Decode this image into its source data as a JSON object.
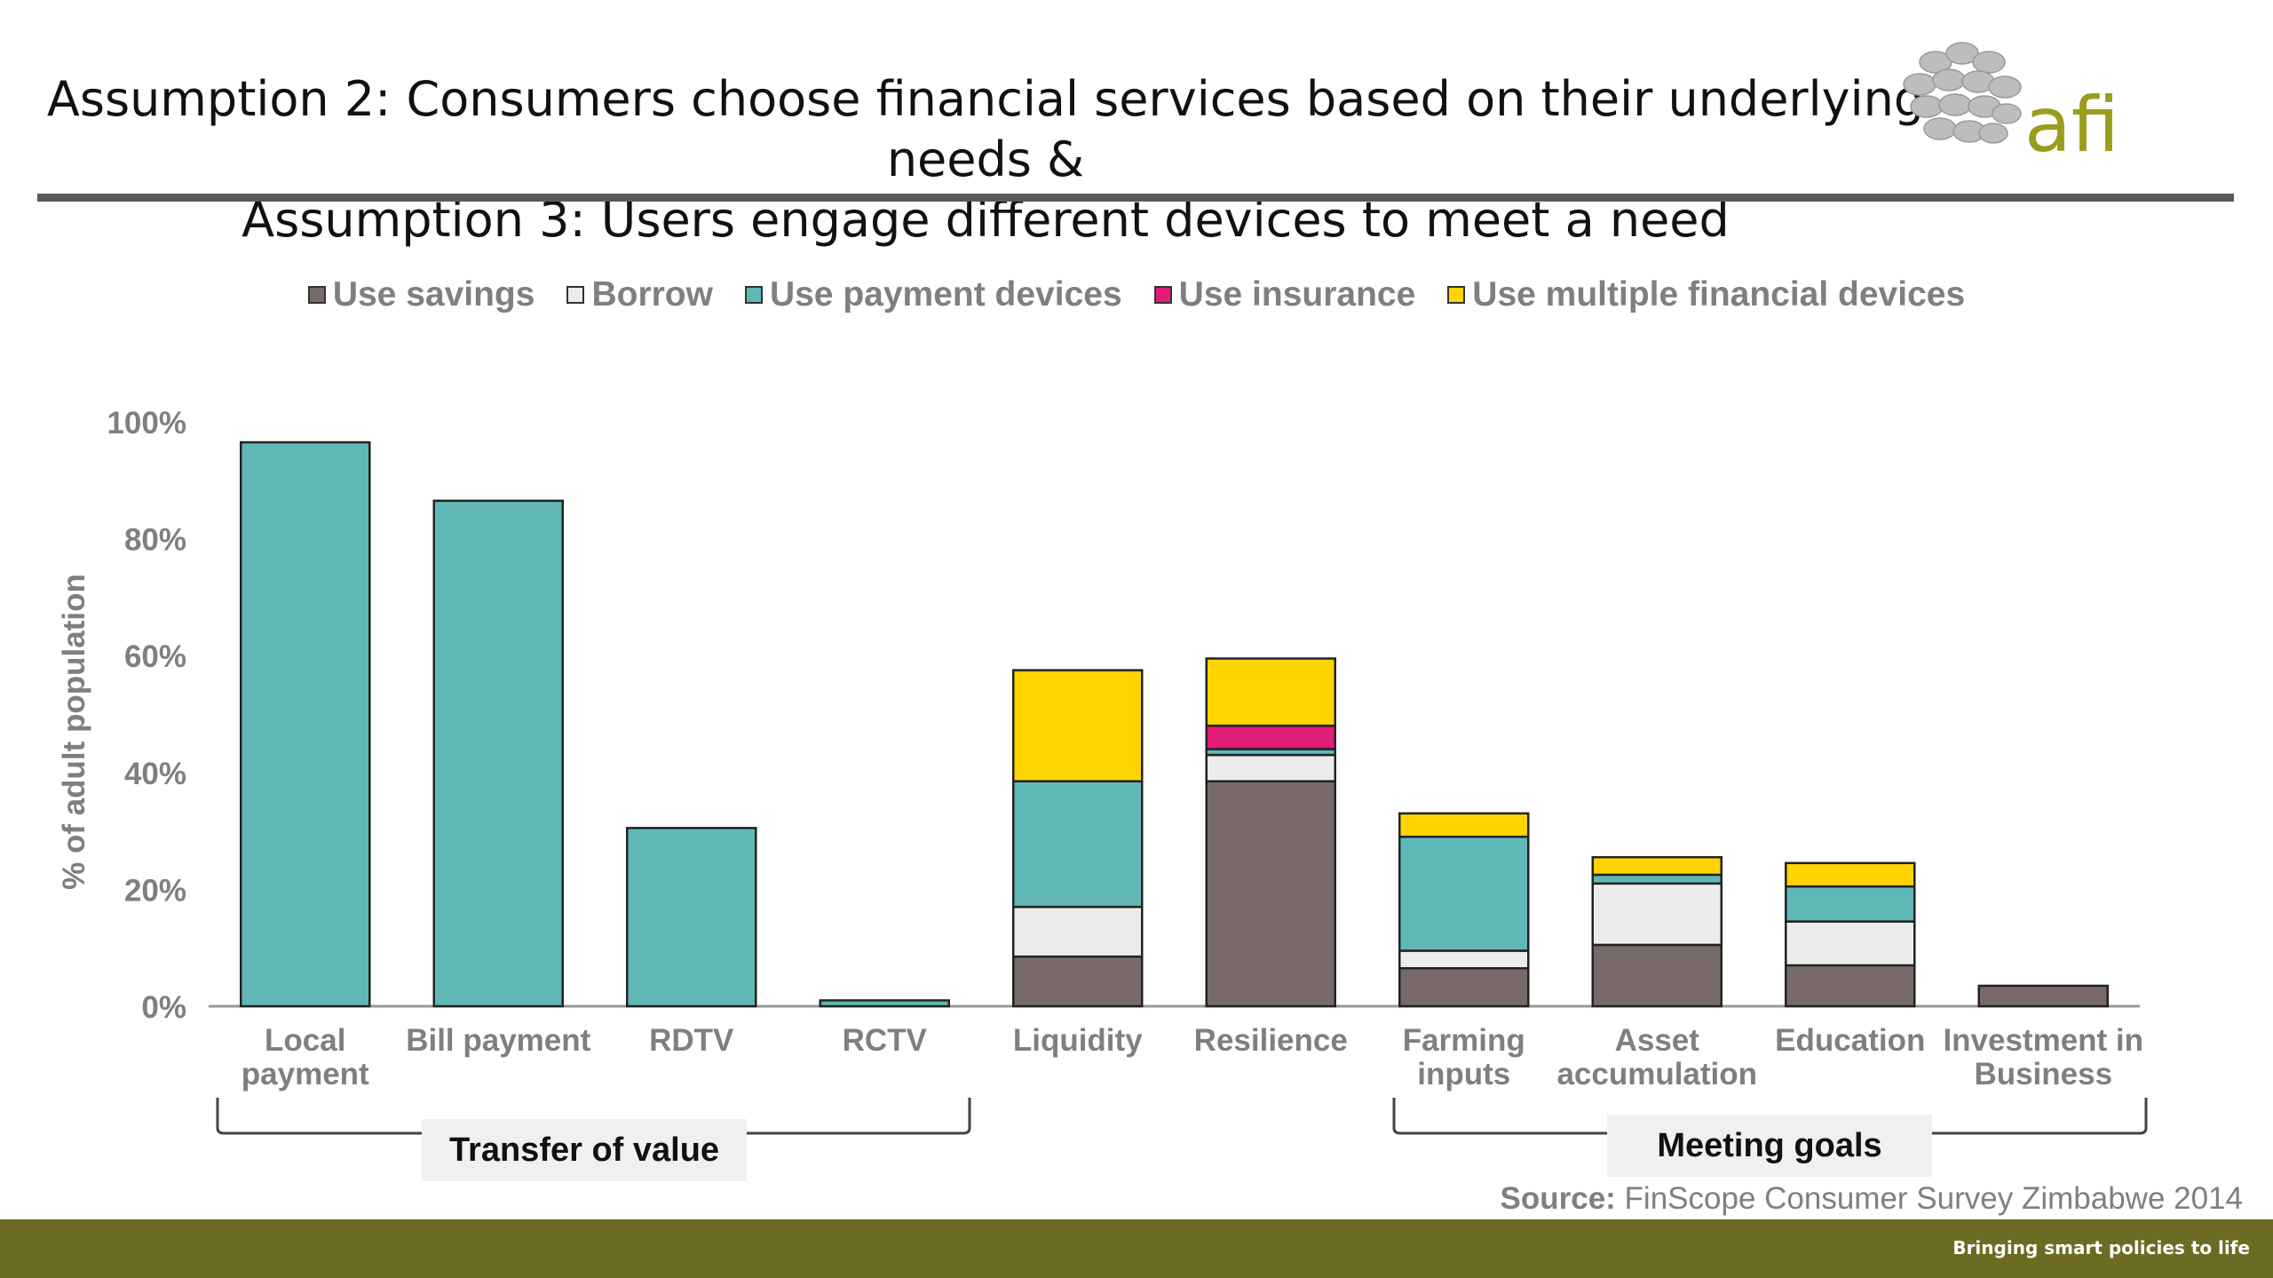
{
  "title_line1": "Assumption 2: Consumers choose financial services based on their underlying needs &",
  "title_line2": "Assumption 3: Users engage different devices to meet a need",
  "logo_text": "afi",
  "source_label": "Source:",
  "source_text": "FinScope Consumer Survey Zimbabwe 2014",
  "footer_text": "Bringing smart policies to life",
  "groups": {
    "transfer": "Transfer of value",
    "meeting": "Meeting goals"
  },
  "colors": {
    "savings": "#776a69",
    "borrow": "#ececec",
    "payment": "#5fb8b6",
    "insurance": "#e21d77",
    "multiple": "#ffd400",
    "logo_green": "#9c9c1c",
    "footer": "#6b6b23"
  },
  "chart_data": {
    "type": "bar",
    "stacked": true,
    "ylabel": "% of adult population",
    "ylim": [
      0,
      100
    ],
    "yticks": [
      "0%",
      "20%",
      "40%",
      "60%",
      "80%",
      "100%"
    ],
    "categories": [
      [
        "Local",
        "payment"
      ],
      [
        "Bill payment"
      ],
      [
        "RDTV"
      ],
      [
        "RCTV"
      ],
      [
        "Liquidity"
      ],
      [
        "Resilience"
      ],
      [
        "Farming",
        "inputs"
      ],
      [
        "Asset",
        "accumulation"
      ],
      [
        "Education"
      ],
      [
        "Investment in",
        "Business"
      ]
    ],
    "legend_position": "top",
    "series": [
      {
        "name": "Use savings",
        "color": "#776a69",
        "values": [
          0,
          0,
          0,
          0,
          8.5,
          38.5,
          6.5,
          10.5,
          7,
          3.5
        ]
      },
      {
        "name": "Borrow",
        "color": "#ececec",
        "values": [
          0,
          0,
          0,
          0,
          8.5,
          4.5,
          3,
          10.5,
          7.5,
          0
        ]
      },
      {
        "name": "Use payment devices",
        "color": "#5fb8b6",
        "values": [
          96.5,
          86.5,
          30.5,
          1,
          21.5,
          1,
          19.5,
          1.5,
          6,
          0
        ]
      },
      {
        "name": "Use insurance",
        "color": "#e21d77",
        "values": [
          0,
          0,
          0,
          0,
          0,
          4,
          0,
          0,
          0,
          0
        ]
      },
      {
        "name": "Use multiple financial devices",
        "color": "#ffd400",
        "values": [
          0,
          0,
          0,
          0,
          19,
          11.5,
          4,
          3,
          4,
          0
        ]
      }
    ]
  }
}
